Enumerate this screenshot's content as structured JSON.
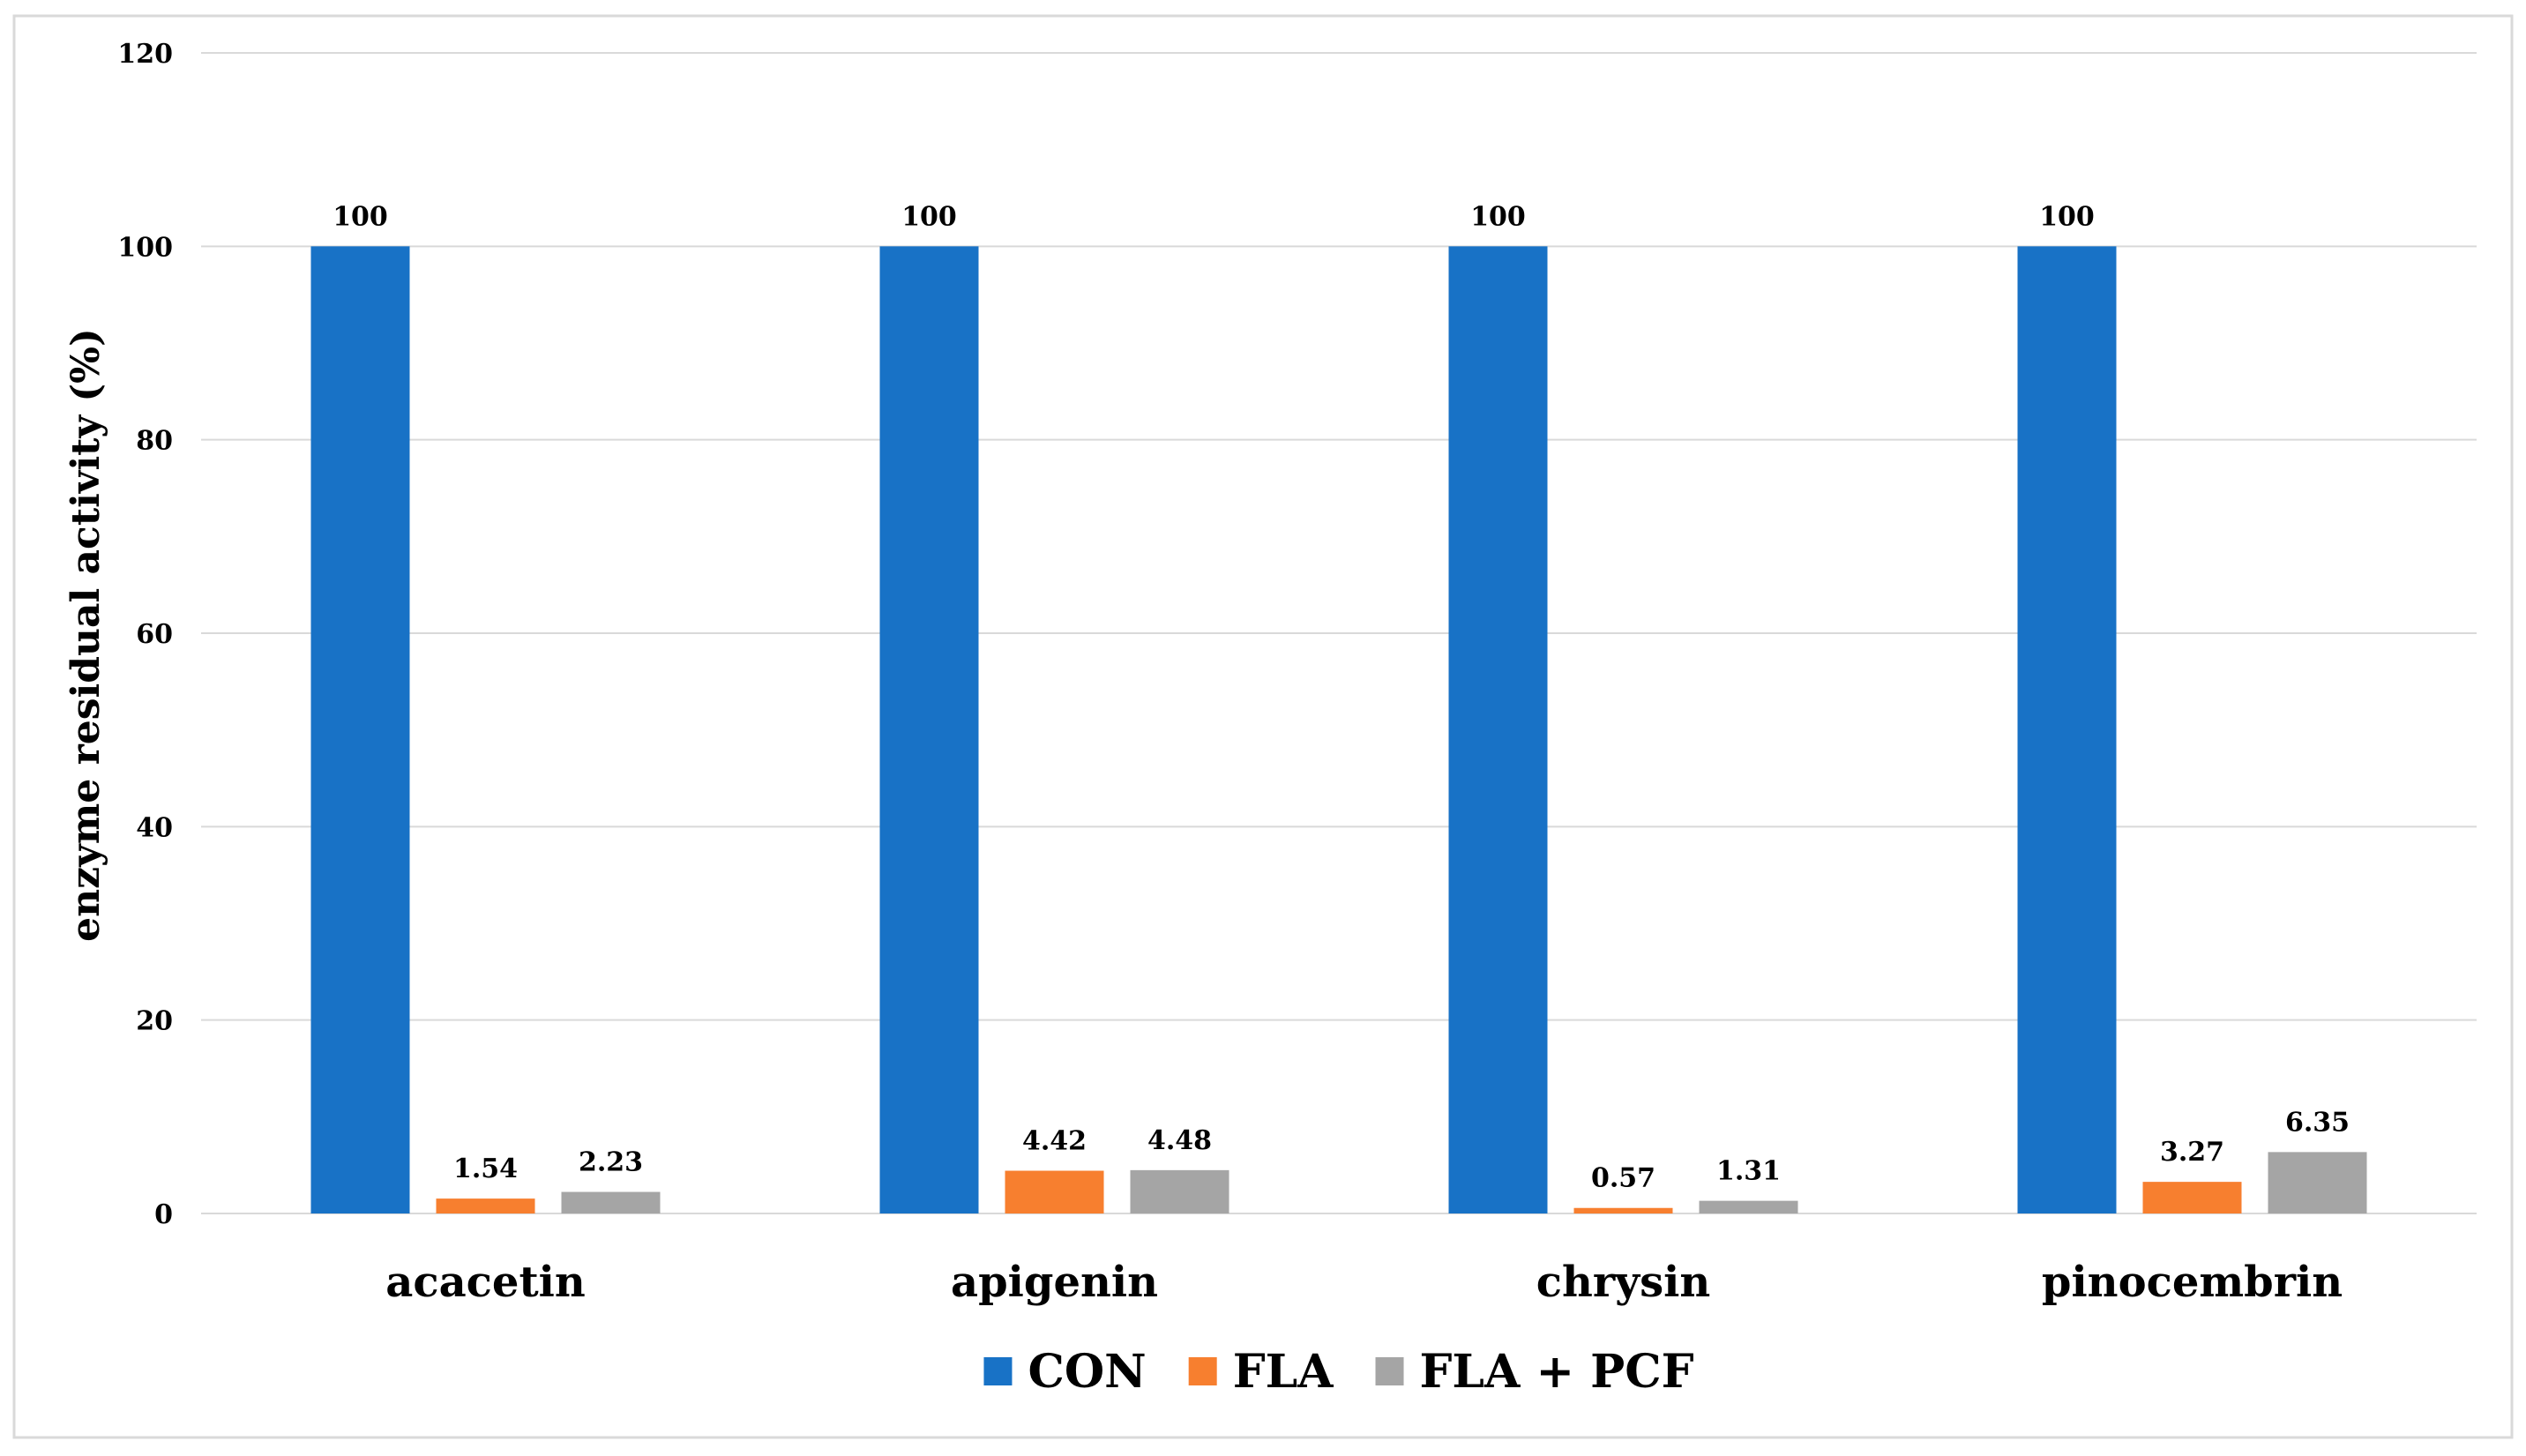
{
  "chart_data": {
    "type": "bar",
    "title": "",
    "xlabel": "",
    "ylabel": "enzyme residual activity (%)",
    "categories": [
      "acacetin",
      "apigenin",
      "chrysin",
      "pinocembrin"
    ],
    "series": [
      {
        "name": "CON",
        "color": "#1872c6",
        "values": [
          100,
          100,
          100,
          100
        ],
        "labels": [
          "100",
          "100",
          "100",
          "100"
        ]
      },
      {
        "name": "FLA",
        "color": "#f77f2f",
        "values": [
          1.54,
          4.42,
          0.57,
          3.27
        ],
        "labels": [
          "1.54",
          "4.42",
          "0.57",
          "3.27"
        ]
      },
      {
        "name": "FLA + PCF",
        "color": "#a5a5a5",
        "values": [
          2.23,
          4.48,
          1.31,
          6.35
        ],
        "labels": [
          "2.23",
          "4.48",
          "1.31",
          "6.35"
        ]
      }
    ],
    "ylim": [
      0,
      120
    ],
    "yticks": [
      0,
      20,
      40,
      60,
      80,
      100,
      120
    ],
    "grid": true,
    "legend": "bottom"
  }
}
